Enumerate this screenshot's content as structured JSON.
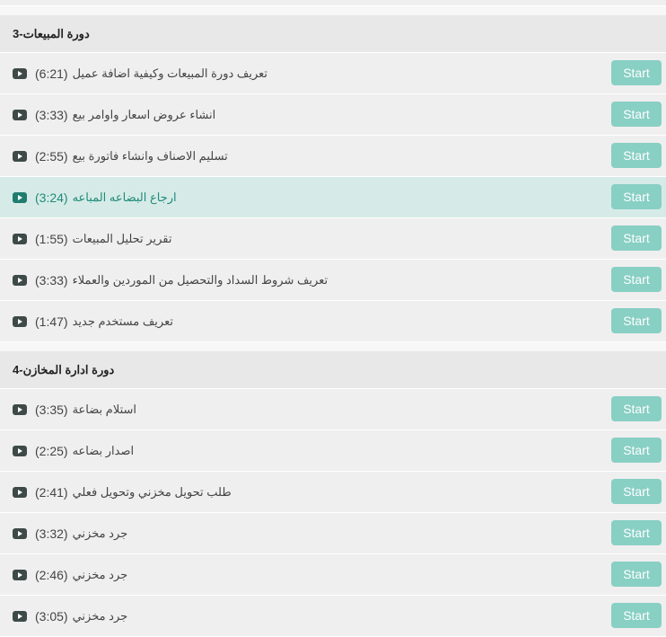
{
  "sections": [
    {
      "title": "دورة المبيعات-3",
      "lessons": [
        {
          "title": "تعريف دورة المبيعات وكيفية اضافة عميل",
          "duration": "(6:21)",
          "button": "Start",
          "active": false
        },
        {
          "title": "انشاء عروض اسعار واوامر بيع",
          "duration": "(3:33)",
          "button": "Start",
          "active": false
        },
        {
          "title": "تسليم الاصناف وانشاء فاتورة بيع",
          "duration": "(2:55)",
          "button": "Start",
          "active": false
        },
        {
          "title": "ارجاع البضاعه المباعه",
          "duration": "(3:24)",
          "button": "Start",
          "active": true
        },
        {
          "title": "تقرير تحليل المبيعات",
          "duration": "(1:55)",
          "button": "Start",
          "active": false
        },
        {
          "title": "تعريف شروط السداد والتحصيل من الموردين والعملاء",
          "duration": "(3:33)",
          "button": "Start",
          "active": false
        },
        {
          "title": "تعريف مستخدم جديد",
          "duration": "(1:47)",
          "button": "Start",
          "active": false
        }
      ]
    },
    {
      "title": "دورة ادارة المخازن-4",
      "lessons": [
        {
          "title": "استلام بضاعة",
          "duration": "(3:35)",
          "button": "Start",
          "active": false
        },
        {
          "title": "اصدار بضاعه",
          "duration": "(2:25)",
          "button": "Start",
          "active": false
        },
        {
          "title": "طلب تحويل مخزني وتحويل فعلي",
          "duration": "(2:41)",
          "button": "Start",
          "active": false
        },
        {
          "title": "جرد مخزني",
          "duration": "(3:32)",
          "button": "Start",
          "active": false
        },
        {
          "title": "جرد مخزني",
          "duration": "(2:46)",
          "button": "Start",
          "active": false
        },
        {
          "title": "جرد مخزني",
          "duration": "(3:05)",
          "button": "Start",
          "active": false
        }
      ]
    }
  ],
  "colors": {
    "button": "#88cfc4",
    "active_row": "#d6ebe7",
    "active_text": "#1f8a7a",
    "icon": "#3d4a48"
  }
}
